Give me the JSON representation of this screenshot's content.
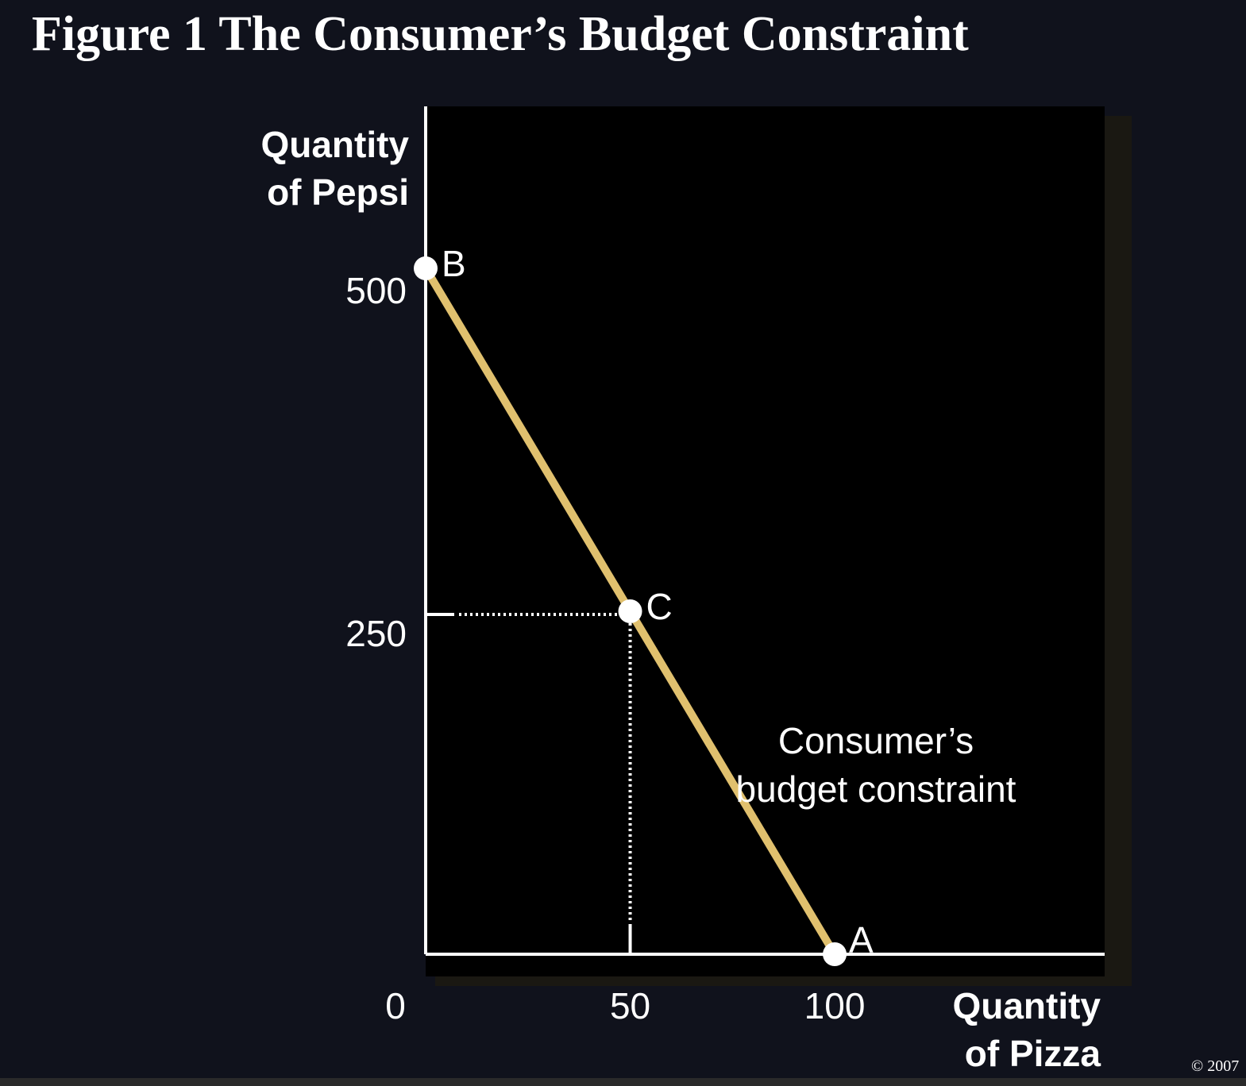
{
  "slide": {
    "title": "Figure 1 The Consumer’s Budget Constraint",
    "copyright": "© 2007"
  },
  "chart_data": {
    "type": "line",
    "title": "Figure 1 The Consumer’s Budget Constraint",
    "xlabel": [
      "Quantity",
      "of Pizza"
    ],
    "ylabel": [
      "Quantity",
      "of Pepsi"
    ],
    "xlim": [
      0,
      166
    ],
    "ylim": [
      0,
      500
    ],
    "x_ticks": [
      0,
      50,
      100
    ],
    "y_ticks": [
      250,
      500
    ],
    "grid": false,
    "series": [
      {
        "x": [
          0,
          100
        ],
        "y": [
          500,
          0
        ],
        "color": "#e0c06e"
      }
    ],
    "points": [
      {
        "label": "B",
        "x": 0,
        "y": 500
      },
      {
        "label": "C",
        "x": 50,
        "y": 250
      },
      {
        "label": "A",
        "x": 100,
        "y": 0
      }
    ],
    "guides": {
      "x": 50,
      "y": 250
    },
    "annotation": [
      "Consumer’s",
      "budget constraint"
    ],
    "colors": {
      "background": "#10121c",
      "plot_area": "#000000",
      "line": "#e0c06e",
      "axis": "#ffffff"
    }
  }
}
